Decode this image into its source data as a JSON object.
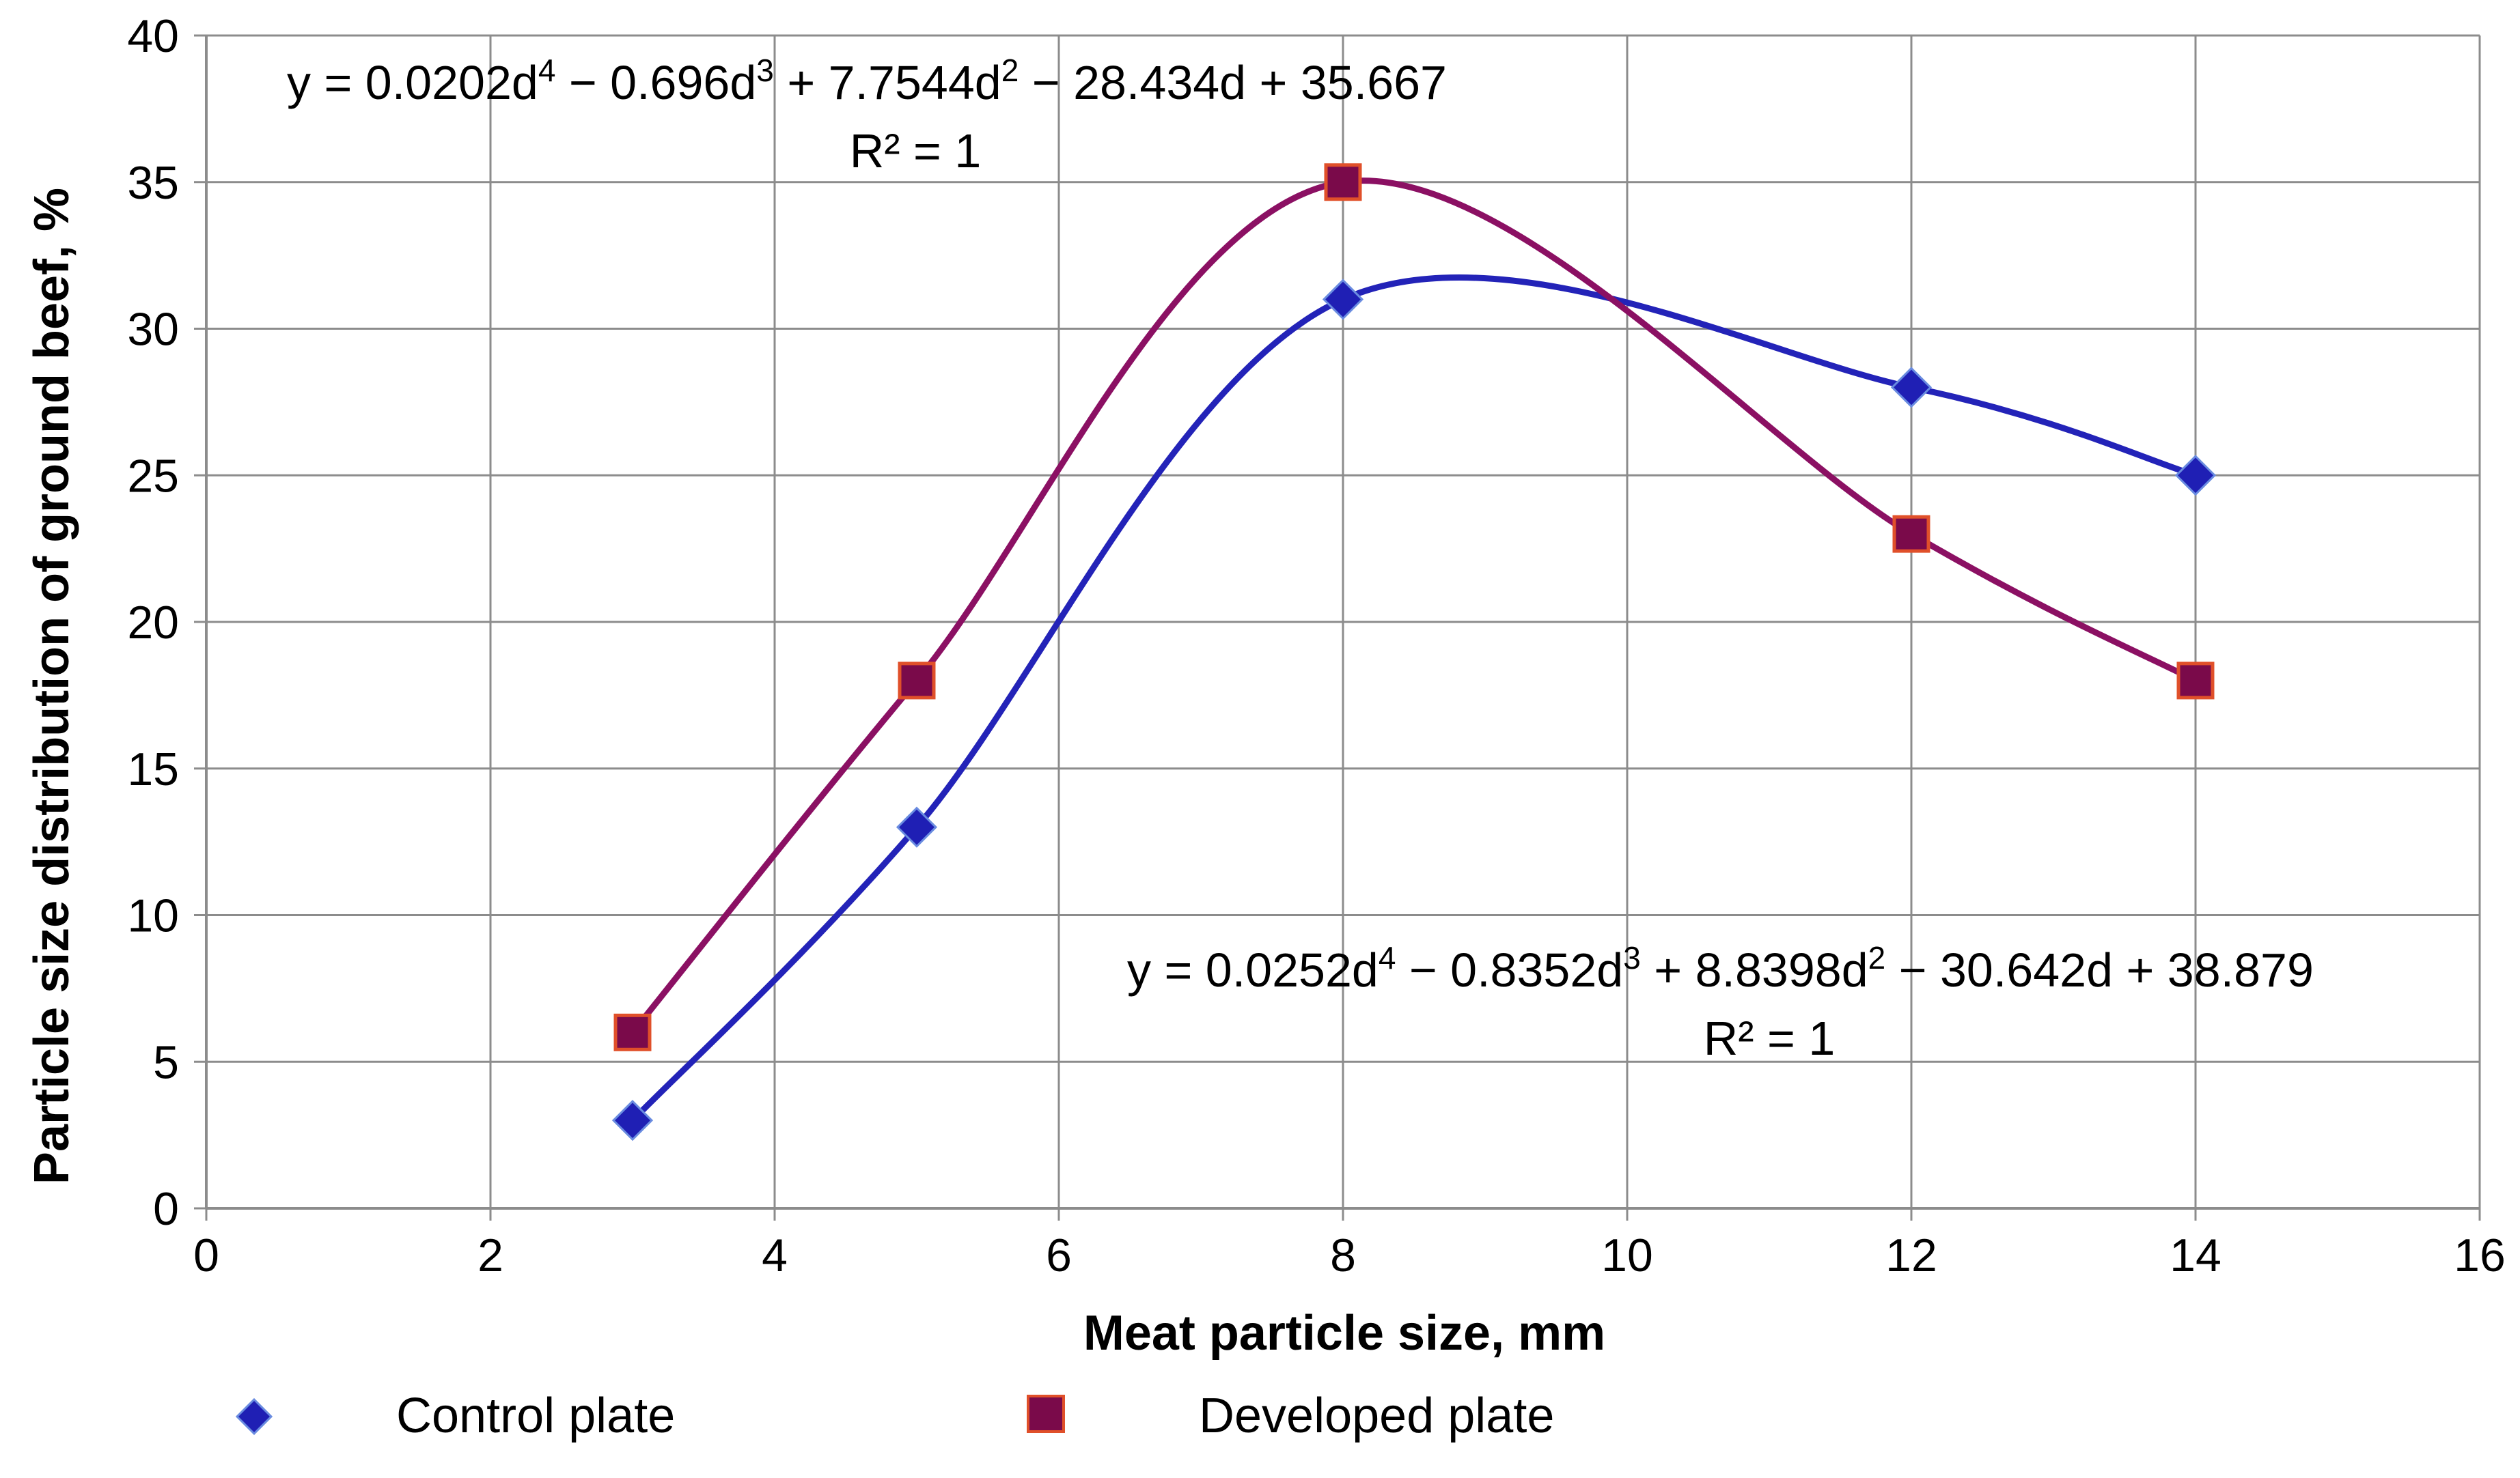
{
  "chart_data": {
    "type": "scatter",
    "title": "",
    "xlabel": "Meat particle size, mm",
    "ylabel": "Particle size distribution of ground beef, %",
    "xlim": [
      0,
      16
    ],
    "ylim": [
      0,
      40
    ],
    "x_ticks": [
      "0",
      "2",
      "4",
      "6",
      "8",
      "10",
      "12",
      "14",
      "16"
    ],
    "y_ticks": [
      "0",
      "5",
      "10",
      "15",
      "20",
      "25",
      "30",
      "35",
      "40"
    ],
    "grid": true,
    "legend_position": "bottom",
    "series": [
      {
        "name": "Control plate",
        "marker": "diamond",
        "color": "#1f1fb4",
        "line_color": "#2323b8",
        "x": [
          3,
          5,
          8,
          12,
          14
        ],
        "y": [
          3,
          13,
          31,
          28,
          25
        ]
      },
      {
        "name": "Developed plate",
        "marker": "square",
        "color": "#7a0a4a",
        "line_color": "#8b1063",
        "marker_edge": "#e0502a",
        "x": [
          3,
          5,
          8,
          12,
          14
        ],
        "y": [
          6,
          18,
          35,
          23,
          18
        ]
      }
    ],
    "annotations": {
      "developed_eq": {
        "prefix": "y = 0.0202d",
        "sup1": "4",
        "part2": " − 0.696d",
        "sup2": "3",
        "part3": " + 7.7544d",
        "sup3": "2",
        "part4": " − 28.434d + 35.667",
        "r2": "R² = 1"
      },
      "control_eq": {
        "prefix": "y = 0.0252d",
        "sup1": "4",
        "part2": " − 0.8352d",
        "sup2": "3",
        "part3": " + 8.8398d",
        "sup3": "2",
        "part4": " − 30.642d + 38.879",
        "r2": "R² = 1"
      }
    }
  }
}
